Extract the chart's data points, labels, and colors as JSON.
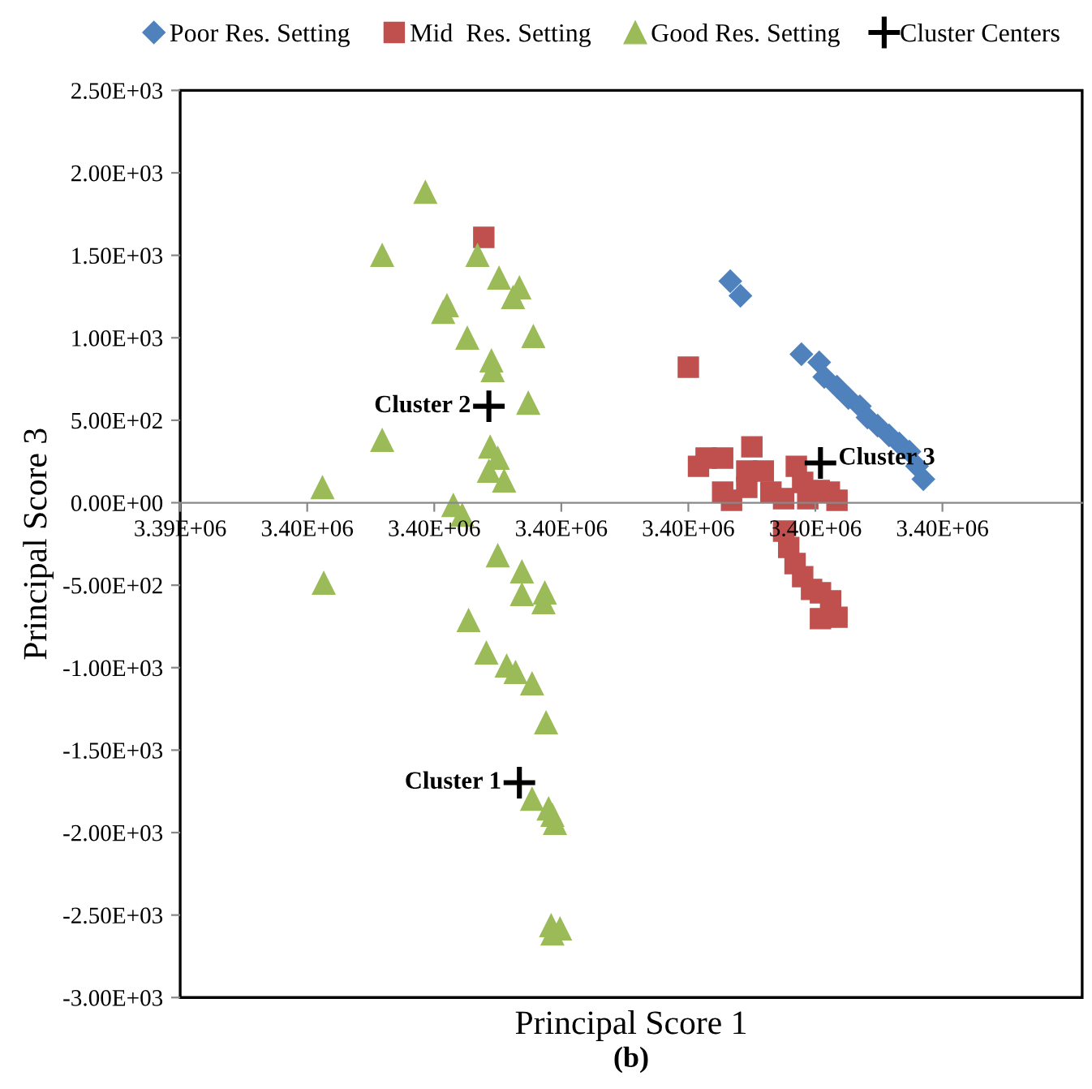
{
  "chart_data": {
    "type": "scatter",
    "xlabel": "Principal Score 1",
    "ylabel": "Principal Score 3",
    "xlim": [
      3394000,
      3401100
    ],
    "xticks": [
      {
        "value": 3394000,
        "label": "3.39E+06"
      },
      {
        "value": 3395000,
        "label": "3.40E+06"
      },
      {
        "value": 3396000,
        "label": "3.40E+06"
      },
      {
        "value": 3397000,
        "label": "3.40E+06"
      },
      {
        "value": 3398000,
        "label": "3.40E+06"
      },
      {
        "value": 3399000,
        "label": "3.40E+06"
      },
      {
        "value": 3400000,
        "label": "3.40E+06"
      }
    ],
    "ylim": [
      -3000,
      2500
    ],
    "yticks": [
      {
        "value": 2500,
        "label": "2.50E+03"
      },
      {
        "value": 2000,
        "label": "2.00E+03"
      },
      {
        "value": 1500,
        "label": "1.50E+03"
      },
      {
        "value": 1000,
        "label": "1.00E+03"
      },
      {
        "value": 500,
        "label": "5.00E+02"
      },
      {
        "value": 0,
        "label": "0.00E+00"
      },
      {
        "value": -500,
        "label": "-5.00E+02"
      },
      {
        "value": -1000,
        "label": "-1.00E+03"
      },
      {
        "value": -1500,
        "label": "-1.50E+03"
      },
      {
        "value": -2000,
        "label": "-2.00E+03"
      },
      {
        "value": -2500,
        "label": "-2.50E+03"
      },
      {
        "value": -3000,
        "label": "-3.00E+03"
      }
    ],
    "grid": false,
    "legend": "top",
    "series": [
      {
        "name": "Poor Res. Setting",
        "color": "#4f81bd",
        "marker": "diamond",
        "x": [
          3398330,
          3398410,
          3398890,
          3399030,
          3399070,
          3399170,
          3399260,
          3399350,
          3399410,
          3399490,
          3399580,
          3399660,
          3399740,
          3399800,
          3399850
        ],
        "values": [
          1343,
          1255,
          900,
          851,
          763,
          704,
          635,
          585,
          517,
          467,
          408,
          359,
          310,
          221,
          143
        ]
      },
      {
        "name": "Mid  Res. Setting",
        "color": "#c0504d",
        "marker": "square",
        "x": [
          3396390,
          3398000,
          3398080,
          3398140,
          3398270,
          3398270,
          3398340,
          3398460,
          3398500,
          3398460,
          3398590,
          3398650,
          3398750,
          3398850,
          3398900,
          3398940,
          3399030,
          3399110,
          3399170,
          3398750,
          3398790,
          3398840,
          3398900,
          3398970,
          3399040,
          3399120,
          3399170,
          3399040
        ],
        "values": [
          1609,
          822,
          221,
          271,
          271,
          64,
          15,
          93,
          339,
          192,
          192,
          64,
          25,
          221,
          123,
          25,
          74,
          64,
          15,
          -172,
          -271,
          -369,
          -448,
          -526,
          -546,
          -595,
          -694,
          -703
        ]
      },
      {
        "name": "Good Res. Setting",
        "color": "#9bbb59",
        "marker": "triangle",
        "x": [
          3395930,
          3395590,
          3396340,
          3396510,
          3396670,
          3396620,
          3396100,
          3396070,
          3396260,
          3396780,
          3396450,
          3396460,
          3396740,
          3395590,
          3396440,
          3396500,
          3396430,
          3396550,
          3395120,
          3396150,
          3396220,
          3396500,
          3395130,
          3396690,
          3396690,
          3396870,
          3396860,
          3396270,
          3396410,
          3396570,
          3396640,
          3396770,
          3396880,
          3396770,
          3396900,
          3396930,
          3396950,
          3396920,
          3396990,
          3396930
        ],
        "values": [
          1884,
          1501,
          1501,
          1363,
          1304,
          1245,
          1196,
          1156,
          999,
          1009,
          861,
          802,
          605,
          379,
          339,
          271,
          192,
          133,
          93,
          -15,
          -74,
          -320,
          -487,
          -418,
          -556,
          -546,
          -605,
          -713,
          -910,
          -989,
          -1028,
          -1097,
          -1333,
          -1796,
          -1855,
          -1894,
          -1943,
          -2563,
          -2583,
          -2613
        ]
      },
      {
        "name": "Cluster Centers",
        "color": "#000000",
        "marker": "cross",
        "x": [
          3396670,
          3396430,
          3399040
        ],
        "values": [
          -1697,
          585,
          241
        ]
      }
    ],
    "annotations": [
      {
        "text": "Cluster 1",
        "x": 3396670,
        "y": -1697
      },
      {
        "text": "Cluster 2",
        "x": 3396430,
        "y": 585
      },
      {
        "text": "Cluster 3",
        "x": 3399040,
        "y": 241
      },
      "(b)"
    ]
  }
}
